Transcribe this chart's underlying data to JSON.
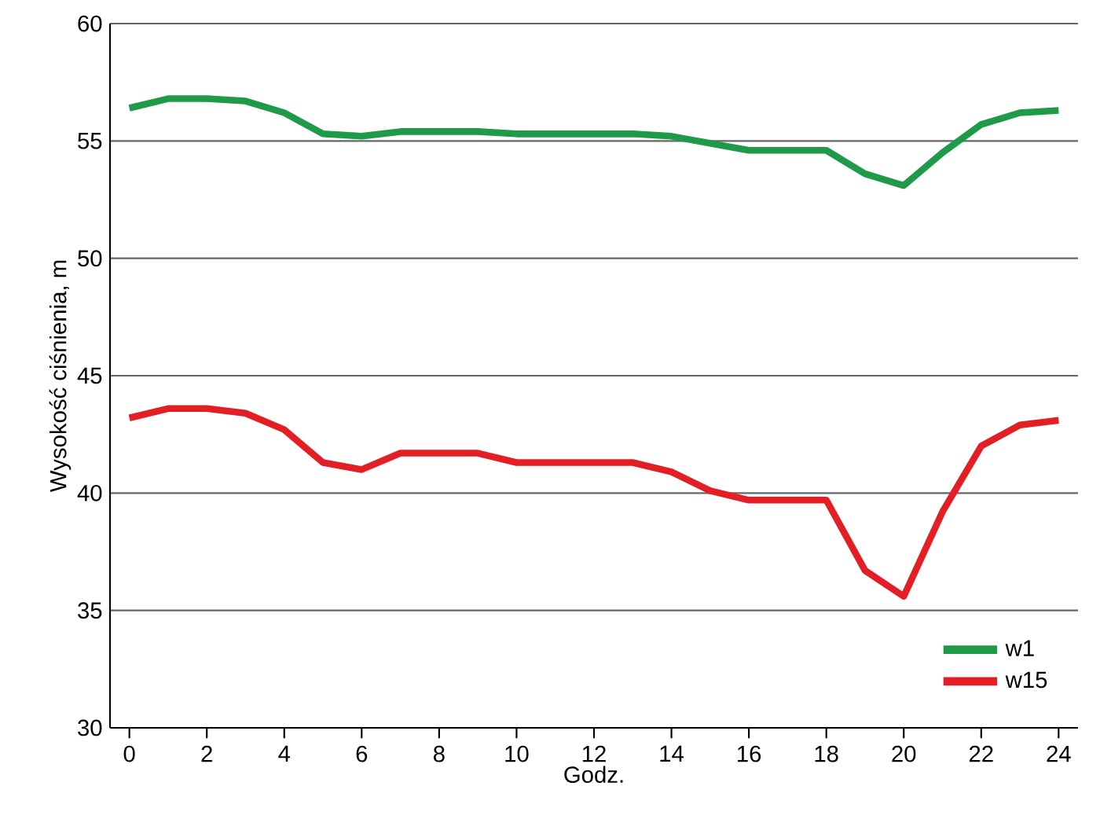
{
  "chart_data": {
    "type": "line",
    "xlabel": "Godz.",
    "ylabel": "Wysokość ciśnienia, m",
    "x": [
      0,
      1,
      2,
      3,
      4,
      5,
      6,
      7,
      8,
      9,
      10,
      11,
      12,
      13,
      14,
      15,
      16,
      17,
      18,
      19,
      20,
      21,
      22,
      23,
      24
    ],
    "series": [
      {
        "name": "w1",
        "color": "#1f9a48",
        "values": [
          56.4,
          56.8,
          56.8,
          56.7,
          56.2,
          55.3,
          55.2,
          55.4,
          55.4,
          55.4,
          55.3,
          55.3,
          55.3,
          55.3,
          55.2,
          54.9,
          54.6,
          54.6,
          54.6,
          53.6,
          53.1,
          54.5,
          55.7,
          56.2,
          56.3
        ]
      },
      {
        "name": "w15",
        "color": "#e31e24",
        "values": [
          43.2,
          43.6,
          43.6,
          43.4,
          42.7,
          41.3,
          41.0,
          41.7,
          41.7,
          41.7,
          41.3,
          41.3,
          41.3,
          41.3,
          40.9,
          40.1,
          39.7,
          39.7,
          39.7,
          36.7,
          35.6,
          39.2,
          42.0,
          42.9,
          43.1
        ]
      }
    ],
    "xlim": [
      -0.5,
      24.5
    ],
    "ylim": [
      30,
      60
    ],
    "xticks": [
      0,
      2,
      4,
      6,
      8,
      10,
      12,
      14,
      16,
      18,
      20,
      22,
      24
    ],
    "yticks": [
      30,
      35,
      40,
      45,
      50,
      55,
      60
    ],
    "grid": "y",
    "legend": "bottom right",
    "marker": "none",
    "line_style": "solid"
  }
}
